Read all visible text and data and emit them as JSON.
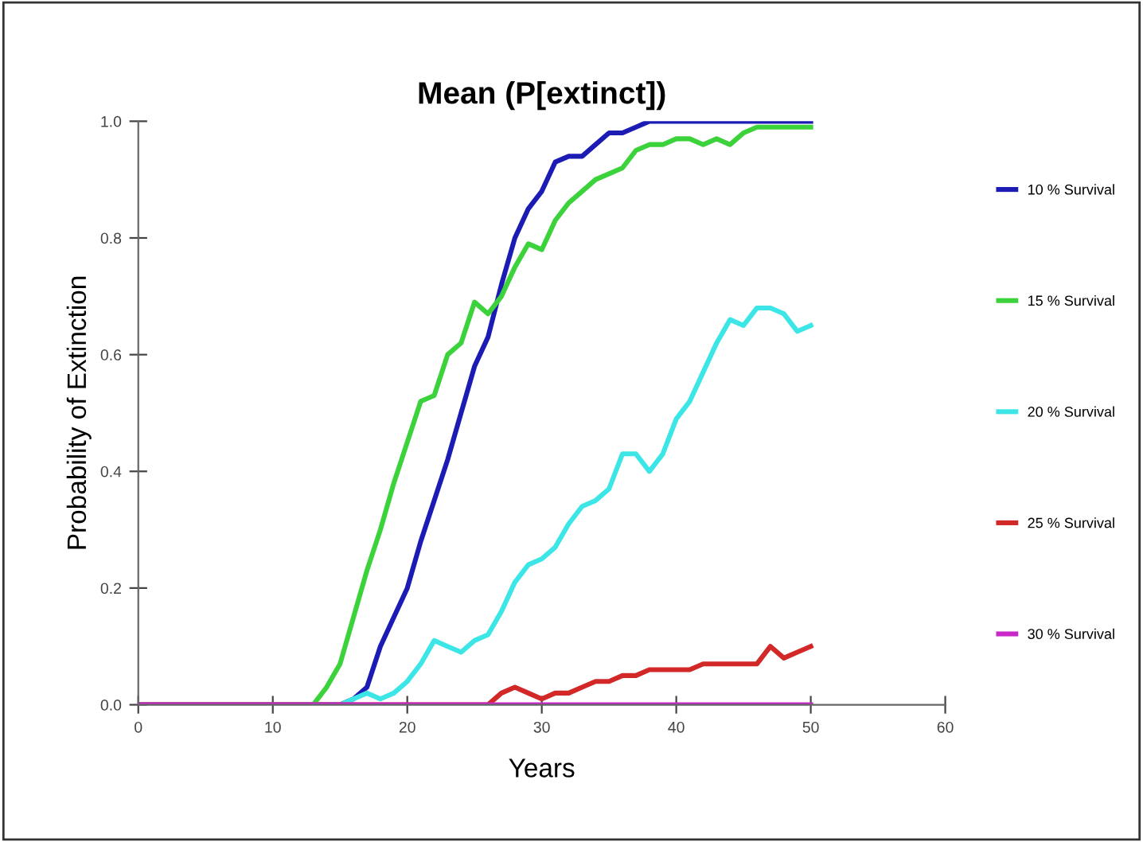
{
  "chart_data": {
    "type": "line",
    "title": "Mean (P[extinct])",
    "xlabel": "Years",
    "ylabel": "Probability of Extinction",
    "xlim": [
      0,
      60
    ],
    "xticks": [
      0,
      10,
      20,
      30,
      40,
      50,
      60
    ],
    "ylim": [
      0,
      1.0
    ],
    "yticks": [
      {
        "value": 0,
        "label": "0.0"
      },
      {
        "value": 0.2,
        "label": "0.2"
      },
      {
        "value": 0.4,
        "label": "0.4"
      },
      {
        "value": 0.6,
        "label": "0.6"
      },
      {
        "value": 0.8,
        "label": "0.8"
      },
      {
        "value": 1.0,
        "label": "1.0"
      }
    ],
    "grid": false,
    "legend": "right",
    "marker": "none",
    "line_style": "solid",
    "series": [
      {
        "name": "10 % Survival",
        "color": "#1c1cb4",
        "x": [
          0,
          15,
          16,
          17,
          18,
          19,
          20,
          21,
          22,
          23,
          24,
          25,
          26,
          27,
          28,
          29,
          30,
          31,
          32,
          33,
          34,
          35,
          36,
          37,
          38,
          50
        ],
        "values": [
          0,
          0,
          0.01,
          0.03,
          0.1,
          0.15,
          0.2,
          0.28,
          0.35,
          0.42,
          0.5,
          0.58,
          0.63,
          0.72,
          0.8,
          0.85,
          0.88,
          0.93,
          0.94,
          0.94,
          0.96,
          0.98,
          0.98,
          0.99,
          1.0,
          1.0
        ]
      },
      {
        "name": "15 % Survival",
        "color": "#3cd23c",
        "x": [
          0,
          13,
          14,
          15,
          16,
          17,
          18,
          19,
          20,
          21,
          22,
          23,
          24,
          25,
          26,
          27,
          28,
          29,
          30,
          31,
          32,
          33,
          34,
          35,
          36,
          37,
          38,
          39,
          40,
          41,
          42,
          43,
          44,
          45,
          46,
          47,
          48,
          49,
          50
        ],
        "values": [
          0,
          0,
          0.03,
          0.07,
          0.15,
          0.23,
          0.3,
          0.38,
          0.45,
          0.52,
          0.53,
          0.6,
          0.62,
          0.69,
          0.67,
          0.7,
          0.75,
          0.79,
          0.78,
          0.83,
          0.86,
          0.88,
          0.9,
          0.91,
          0.92,
          0.95,
          0.96,
          0.96,
          0.97,
          0.97,
          0.96,
          0.97,
          0.96,
          0.98,
          0.99,
          0.99,
          0.99,
          0.99,
          0.99
        ]
      },
      {
        "name": "20 % Survival",
        "color": "#3ce6e6",
        "x": [
          0,
          15,
          16,
          17,
          18,
          19,
          20,
          21,
          22,
          23,
          24,
          25,
          26,
          27,
          28,
          29,
          30,
          31,
          32,
          33,
          34,
          35,
          36,
          37,
          38,
          39,
          40,
          41,
          42,
          43,
          44,
          45,
          46,
          47,
          48,
          49,
          50
        ],
        "values": [
          0,
          0,
          0.01,
          0.02,
          0.01,
          0.02,
          0.04,
          0.07,
          0.11,
          0.1,
          0.09,
          0.11,
          0.12,
          0.16,
          0.21,
          0.24,
          0.25,
          0.27,
          0.31,
          0.34,
          0.35,
          0.37,
          0.43,
          0.43,
          0.4,
          0.43,
          0.49,
          0.52,
          0.57,
          0.62,
          0.66,
          0.65,
          0.68,
          0.68,
          0.67,
          0.64,
          0.65
        ]
      },
      {
        "name": "25 % Survival",
        "color": "#d22828",
        "x": [
          0,
          26,
          27,
          28,
          29,
          30,
          31,
          32,
          33,
          34,
          35,
          36,
          37,
          38,
          39,
          40,
          41,
          42,
          43,
          44,
          45,
          46,
          47,
          48,
          49,
          50
        ],
        "values": [
          0,
          0,
          0.02,
          0.03,
          0.02,
          0.01,
          0.02,
          0.02,
          0.03,
          0.04,
          0.04,
          0.05,
          0.05,
          0.06,
          0.06,
          0.06,
          0.06,
          0.07,
          0.07,
          0.07,
          0.07,
          0.07,
          0.1,
          0.08,
          0.09,
          0.1
        ]
      },
      {
        "name": "30 % Survival",
        "color": "#c828c8",
        "x": [
          0,
          50
        ],
        "values": [
          0,
          0
        ]
      }
    ]
  }
}
